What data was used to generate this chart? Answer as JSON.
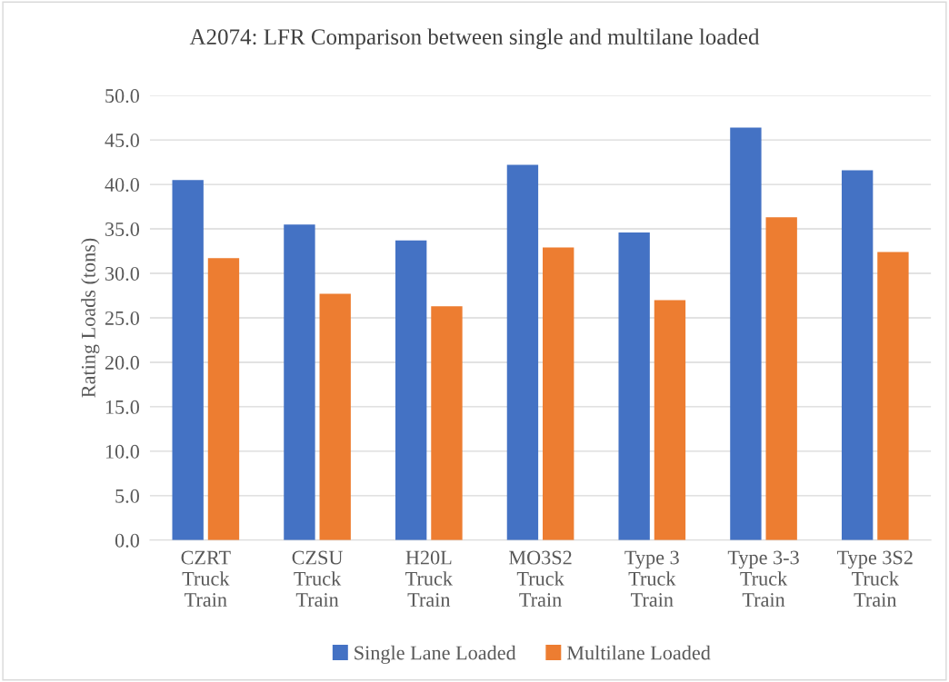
{
  "chart_data": {
    "type": "bar",
    "title": "A2074: LFR Comparison between single and multilane loaded",
    "ylabel": "Rating Loads (tons)",
    "categories": [
      "CZRT\nTruck\nTrain",
      "CZSU\nTruck\nTrain",
      "H20L\nTruck\nTrain",
      "MO3S2\nTruck\nTrain",
      "Type 3\nTruck\nTrain",
      "Type 3-3\nTruck\nTrain",
      "Type 3S2\nTruck\nTrain"
    ],
    "series": [
      {
        "name": "Single Lane Loaded",
        "color": "#4472c4",
        "values": [
          40.5,
          35.5,
          33.7,
          42.2,
          34.6,
          46.4,
          41.6
        ]
      },
      {
        "name": "Multilane Loaded",
        "color": "#ed7d31",
        "values": [
          31.7,
          27.7,
          26.3,
          32.9,
          27.0,
          36.3,
          32.4
        ]
      }
    ],
    "ylim": [
      0,
      50
    ],
    "yticks": [
      {
        "value": 0,
        "label": "0.0"
      },
      {
        "value": 5,
        "label": "5.0"
      },
      {
        "value": 10,
        "label": "10.0"
      },
      {
        "value": 15,
        "label": "15.0"
      },
      {
        "value": 20,
        "label": "20.0"
      },
      {
        "value": 25,
        "label": "25.0"
      },
      {
        "value": 30,
        "label": "30.0"
      },
      {
        "value": 35,
        "label": "35.0"
      },
      {
        "value": 40,
        "label": "40.0"
      },
      {
        "value": 45,
        "label": "45.0"
      },
      {
        "value": 50,
        "label": "50.0"
      }
    ],
    "grid": "y",
    "legend": "bottom"
  }
}
